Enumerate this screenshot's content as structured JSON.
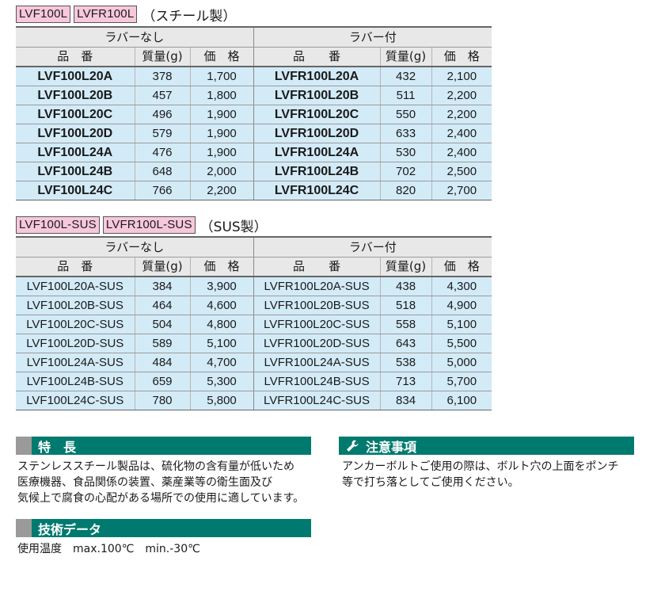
{
  "section1": {
    "tags": [
      "LVF100L",
      "LVFR100L"
    ],
    "suffix": "（スチール製）",
    "group_no_rubber": "ラバーなし",
    "group_rubber": "ラバー付",
    "headers": [
      "品　番",
      "質量(g)",
      "価　格",
      "品　　番",
      "質量(g)",
      "価　格"
    ],
    "rows": [
      [
        "LVF100L20A",
        "378",
        "1,700",
        "LVFR100L20A",
        "432",
        "2,100"
      ],
      [
        "LVF100L20B",
        "457",
        "1,800",
        "LVFR100L20B",
        "511",
        "2,200"
      ],
      [
        "LVF100L20C",
        "496",
        "1,900",
        "LVFR100L20C",
        "550",
        "2,200"
      ],
      [
        "LVF100L20D",
        "579",
        "1,900",
        "LVFR100L20D",
        "633",
        "2,400"
      ],
      [
        "LVF100L24A",
        "476",
        "1,900",
        "LVFR100L24A",
        "530",
        "2,400"
      ],
      [
        "LVF100L24B",
        "648",
        "2,000",
        "LVFR100L24B",
        "702",
        "2,500"
      ],
      [
        "LVF100L24C",
        "766",
        "2,200",
        "LVFR100L24C",
        "820",
        "2,700"
      ]
    ]
  },
  "section2": {
    "tags": [
      "LVF100L-SUS",
      "LVFR100L-SUS"
    ],
    "suffix": "（SUS製）",
    "group_no_rubber": "ラバーなし",
    "group_rubber": "ラバー付",
    "headers": [
      "品　番",
      "質量(g)",
      "価　格",
      "品　　番",
      "質量(g)",
      "価　格"
    ],
    "rows": [
      [
        "LVF100L20A-SUS",
        "384",
        "3,900",
        "LVFR100L20A-SUS",
        "438",
        "4,300"
      ],
      [
        "LVF100L20B-SUS",
        "464",
        "4,600",
        "LVFR100L20B-SUS",
        "518",
        "4,900"
      ],
      [
        "LVF100L20C-SUS",
        "504",
        "4,800",
        "LVFR100L20C-SUS",
        "558",
        "5,100"
      ],
      [
        "LVF100L20D-SUS",
        "589",
        "5,100",
        "LVFR100L20D-SUS",
        "643",
        "5,500"
      ],
      [
        "LVF100L24A-SUS",
        "484",
        "4,700",
        "LVFR100L24A-SUS",
        "538",
        "5,000"
      ],
      [
        "LVF100L24B-SUS",
        "659",
        "5,300",
        "LVFR100L24B-SUS",
        "713",
        "5,700"
      ],
      [
        "LVF100L24C-SUS",
        "780",
        "5,800",
        "LVFR100L24C-SUS",
        "834",
        "6,100"
      ]
    ]
  },
  "features": {
    "title": "特　長",
    "lines": [
      "ステンレススチール製品は、硫化物の含有量が低いため",
      "医療機器、食品関係の装置、薬産業等の衛生面及び",
      "気候上で腐食の心配がある場所での使用に適しています。"
    ]
  },
  "tech": {
    "title": "技術データ",
    "line": "使用温度　max.100℃　min.-30℃"
  },
  "caution": {
    "title": "注意事項",
    "lines": [
      "アンカーボルトご使用の際は、ボルト穴の上面をポンチ",
      "等で打ち落としてご使用ください。"
    ]
  },
  "colors": {
    "tag": "#f7c8dc",
    "cell": "#d3ebf7",
    "header": "#e8e8e8",
    "band": "#007a6e",
    "band_mark": "#9a9a9a"
  },
  "icons": {
    "caution": "wrench-icon"
  }
}
